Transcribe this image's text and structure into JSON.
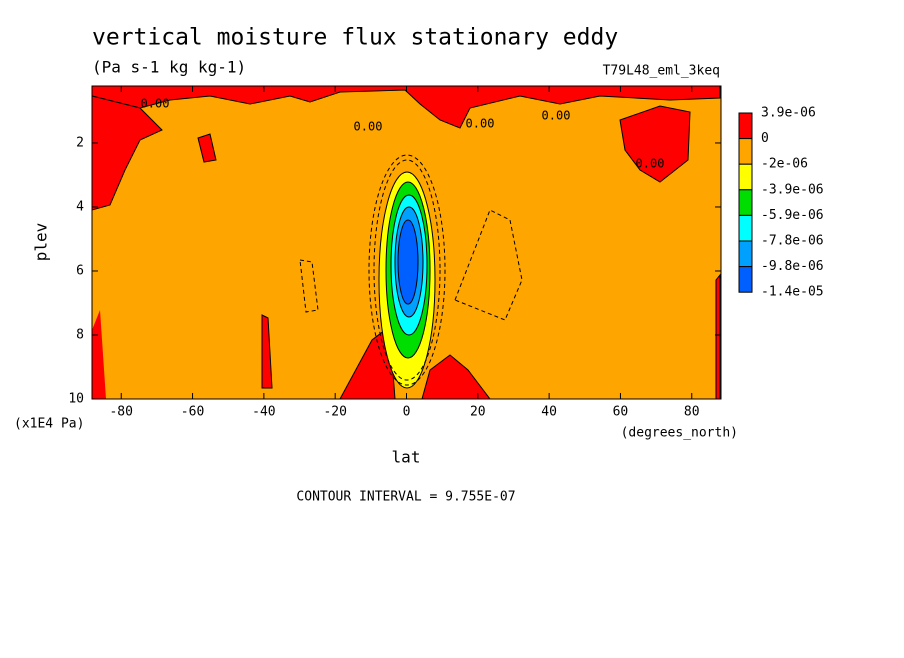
{
  "chart_data": {
    "type": "contour",
    "title": "vertical moisture flux stationary eddy",
    "subtitle": "(Pa s-1 kg kg-1)",
    "dataset": "T79L48_eml_3keq",
    "x_label": "lat",
    "x_units": "(degrees_north)",
    "y_label": "plev",
    "y_units": "(x1E4 Pa)",
    "xlim": [
      -88.2,
      88.2
    ],
    "xticks": [
      -80,
      -60,
      -40,
      -20,
      0,
      20,
      40,
      60,
      80
    ],
    "ylim": [
      10,
      0.22
    ],
    "yticks": [
      2,
      4,
      6,
      8,
      10
    ],
    "levels": [
      {
        "value": 3.9e-06,
        "label": "3.9e-06"
      },
      0,
      {
        "value": -2e-06,
        "label": "-2e-06"
      },
      {
        "value": -3.9e-06,
        "label": "-3.9e-06"
      },
      {
        "value": -5.9e-06,
        "label": "-5.9e-06"
      },
      {
        "value": -7.8e-06,
        "label": "-7.8e-06"
      },
      {
        "value": -9.8e-06,
        "label": "-9.8e-06"
      },
      {
        "value": -1.4e-05,
        "label": "-1.4e-05"
      }
    ],
    "colors": [
      "#ff0000",
      "#ffa500",
      "#ffff00",
      "#00dd00",
      "#00ffff",
      "#00a0ff",
      "#0060ff"
    ],
    "contour_labels": [
      "0.00",
      "0.00",
      "0.00",
      "0.00",
      "0.00"
    ],
    "footnote": "CONTOUR INTERVAL = 9.755E-07"
  }
}
